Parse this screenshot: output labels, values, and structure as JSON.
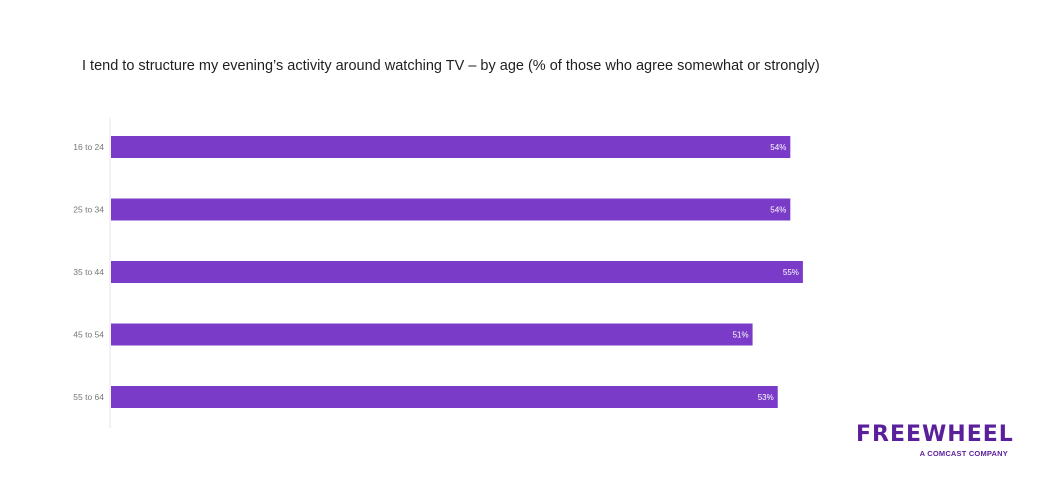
{
  "chart_data": {
    "type": "bar",
    "orientation": "horizontal",
    "title": "I tend to structure my evening’s activity around watching TV – by age (% of those who agree somewhat or strongly)",
    "categories": [
      "16 to 24",
      "25 to 34",
      "35 to 44",
      "45 to 54",
      "55 to 64"
    ],
    "values": [
      54,
      54,
      55,
      51,
      53
    ],
    "value_labels": [
      "54%",
      "54%",
      "55%",
      "51%",
      "53%"
    ],
    "xlim": [
      0,
      100
    ],
    "grid": false,
    "legend": "none",
    "colors": {
      "bar": "#7a3cc8",
      "axis": "#e6e6e6",
      "label": "#777777",
      "value_label": "#ffffff"
    }
  },
  "brand": {
    "name": "FREEWHEEL",
    "tagline": "A COMCAST COMPANY",
    "color": "#5a1f9a"
  }
}
